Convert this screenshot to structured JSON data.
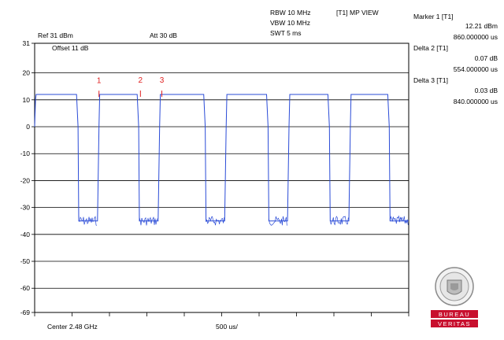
{
  "header": {
    "ref_level": "Ref 31 dBm",
    "attenuation": "Att  30 dB",
    "offset": "Offset 11 dB",
    "rbw": "RBW 10 MHz",
    "vbw": "VBW 10 MHz",
    "swt": "SWT 5 ms",
    "trace_mode": "[T1] MP VIEW"
  },
  "markers_panel": [
    {
      "title": "Marker 1 [T1]",
      "level": "12.21 dBm",
      "time": "860.000000 us"
    },
    {
      "title": "Delta 2 [T1]",
      "level": "0.07 dB",
      "time": "554.000000 us"
    },
    {
      "title": "Delta 3 [T1]",
      "level": "0.03 dB",
      "time": "840.000000 us"
    }
  ],
  "footer": {
    "center": "Center 2.48 GHz",
    "span_per_div": "500 us/"
  },
  "chart_data": {
    "type": "line",
    "y_ticks": [
      "31",
      "20",
      "10",
      "0",
      "-10",
      "-20",
      "-30",
      "-40",
      "-50",
      "-60",
      "-69"
    ],
    "y_tick_values": [
      31,
      20,
      10,
      0,
      -10,
      -20,
      -30,
      -40,
      -50,
      -60,
      -69
    ],
    "ylim": [
      -69,
      31
    ],
    "xlim_us": [
      0,
      5000
    ],
    "grid": true,
    "trace_color": "#2a4bd7",
    "series": [
      {
        "x_us": [
          0,
          12,
          20,
          560,
          580,
          590,
          840,
          860,
          870,
          1370,
          1390,
          1400,
          1650,
          1670,
          1680,
          2260,
          2280,
          2290,
          2540,
          2560,
          2570,
          3100,
          3120,
          3130,
          3380,
          3400,
          3410,
          3920,
          3940,
          3950,
          4200,
          4220,
          4230,
          4720,
          4740,
          4750,
          5000
        ],
        "y_dbm": [
          0,
          10,
          12,
          12,
          0,
          -35,
          -35,
          0,
          12,
          12,
          0,
          -35,
          -35,
          0,
          12,
          12,
          0,
          -35,
          -35,
          0,
          12,
          12,
          0,
          -35,
          -35,
          0,
          12,
          12,
          0,
          -35,
          -35,
          0,
          12,
          12,
          0,
          -35,
          -35
        ]
      }
    ],
    "markers": [
      {
        "label": "1",
        "x_us": 860,
        "y_dbm": 12.21
      },
      {
        "label": "2",
        "x_us": 1414,
        "y_dbm": 12.28
      },
      {
        "label": "3",
        "x_us": 1700,
        "y_dbm": 12.24
      }
    ],
    "marker_color": "#e02020"
  }
}
